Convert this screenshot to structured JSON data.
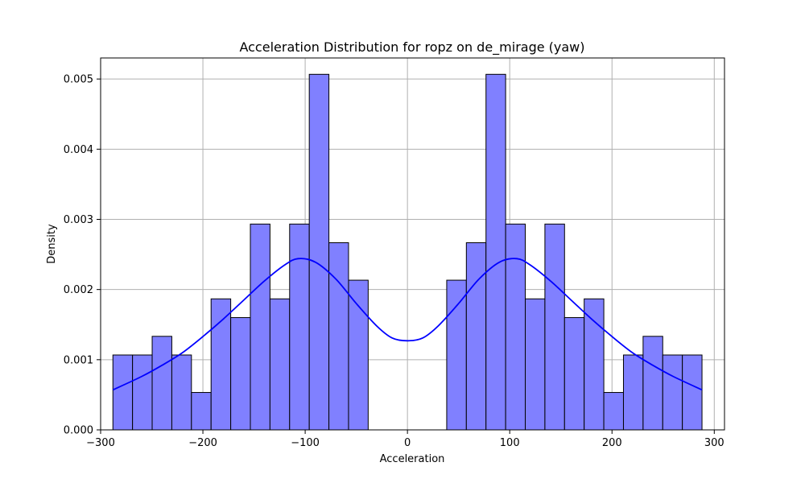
{
  "chart_data": {
    "type": "bar",
    "title": "Acceleration Distribution for ropz on de_mirage (yaw)",
    "xlabel": "Acceleration",
    "ylabel": "Density",
    "xlim": [
      -300,
      310
    ],
    "ylim": [
      0,
      0.0053
    ],
    "xticks": [
      -300,
      -200,
      -100,
      0,
      100,
      200,
      300
    ],
    "xtick_labels": [
      "−300",
      "−200",
      "−100",
      "0",
      "100",
      "200",
      "300"
    ],
    "yticks": [
      0,
      0.001,
      0.002,
      0.003,
      0.004,
      0.005
    ],
    "ytick_labels": [
      "0.000",
      "0.001",
      "0.002",
      "0.003",
      "0.004",
      "0.005"
    ],
    "grid": true,
    "bar_color": "#8080ff",
    "kde_color": "#0000ff",
    "bins": [
      {
        "x0": -288,
        "x1": -268.8,
        "density": 0.001067
      },
      {
        "x0": -268.8,
        "x1": -249.6,
        "density": 0.001067
      },
      {
        "x0": -249.6,
        "x1": -230.4,
        "density": 0.001333
      },
      {
        "x0": -230.4,
        "x1": -211.2,
        "density": 0.001067
      },
      {
        "x0": -211.2,
        "x1": -192.0,
        "density": 0.000533
      },
      {
        "x0": -192.0,
        "x1": -172.8,
        "density": 0.001867
      },
      {
        "x0": -172.8,
        "x1": -153.6,
        "density": 0.0016
      },
      {
        "x0": -153.6,
        "x1": -134.4,
        "density": 0.002933
      },
      {
        "x0": -134.4,
        "x1": -115.2,
        "density": 0.001867
      },
      {
        "x0": -115.2,
        "x1": -96.0,
        "density": 0.002933
      },
      {
        "x0": -96.0,
        "x1": -76.8,
        "density": 0.005067
      },
      {
        "x0": -76.8,
        "x1": -57.6,
        "density": 0.002667
      },
      {
        "x0": -57.6,
        "x1": -38.4,
        "density": 0.002133
      },
      {
        "x0": 38.4,
        "x1": 57.6,
        "density": 0.002133
      },
      {
        "x0": 57.6,
        "x1": 76.8,
        "density": 0.002667
      },
      {
        "x0": 76.8,
        "x1": 96.0,
        "density": 0.005067
      },
      {
        "x0": 96.0,
        "x1": 115.2,
        "density": 0.002933
      },
      {
        "x0": 115.2,
        "x1": 134.4,
        "density": 0.001867
      },
      {
        "x0": 134.4,
        "x1": 153.6,
        "density": 0.002933
      },
      {
        "x0": 153.6,
        "x1": 172.8,
        "density": 0.0016
      },
      {
        "x0": 172.8,
        "x1": 192.0,
        "density": 0.001867
      },
      {
        "x0": 192.0,
        "x1": 211.2,
        "density": 0.000533
      },
      {
        "x0": 211.2,
        "x1": 230.4,
        "density": 0.001067
      },
      {
        "x0": 230.4,
        "x1": 249.6,
        "density": 0.001333
      },
      {
        "x0": 249.6,
        "x1": 268.8,
        "density": 0.001067
      },
      {
        "x0": 268.8,
        "x1": 288.0,
        "density": 0.001067
      }
    ],
    "kde": {
      "x": [
        -288,
        -260,
        -240,
        -220,
        -200,
        -180,
        -160,
        -140,
        -120,
        -107,
        -90,
        -70,
        -50,
        -30,
        -15,
        0,
        15,
        30,
        50,
        70,
        90,
        107,
        120,
        140,
        160,
        180,
        200,
        220,
        240,
        260,
        288
      ],
      "y": [
        0.00057,
        0.00076,
        0.00092,
        0.0011,
        0.00133,
        0.00158,
        0.00185,
        0.00212,
        0.00235,
        0.00244,
        0.00239,
        0.00215,
        0.0018,
        0.00148,
        0.00131,
        0.00127,
        0.00131,
        0.00148,
        0.0018,
        0.00215,
        0.00239,
        0.00244,
        0.00235,
        0.00212,
        0.00185,
        0.00158,
        0.00133,
        0.0011,
        0.00092,
        0.00076,
        0.00057
      ]
    }
  }
}
